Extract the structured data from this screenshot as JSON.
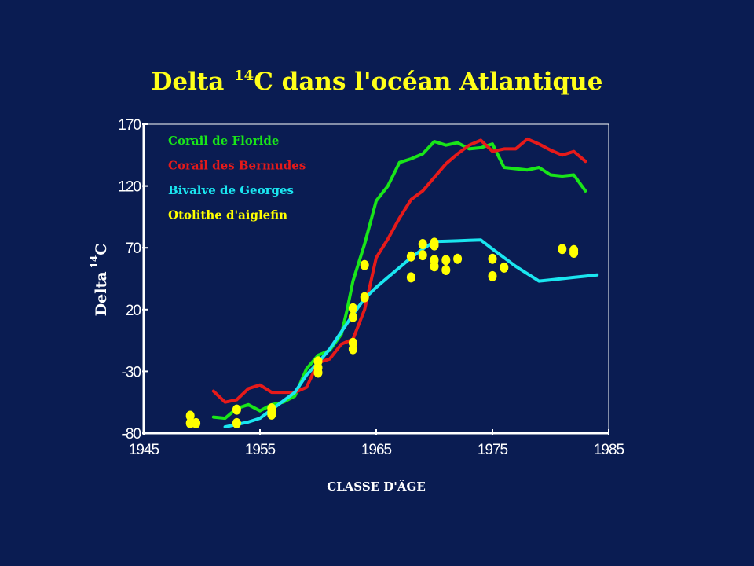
{
  "slide": {
    "title_part1": "Delta ",
    "title_sup": "14",
    "title_part2": "C dans l'océan Atlantique"
  },
  "colors": {
    "background": "#0a1c52",
    "title": "#ffff1a",
    "axis": "#ffffff"
  },
  "chart_data": {
    "type": "line",
    "title": "Delta 14C dans l'océan Atlantique",
    "xlabel": "CLASSE D'ÂGE",
    "ylabel_main": "Delta",
    "ylabel_sup": "14",
    "ylabel_tail": "C",
    "xlim": [
      1945,
      1985
    ],
    "ylim": [
      -80,
      170
    ],
    "xticks": [
      1945,
      1955,
      1965,
      1975,
      1985
    ],
    "yticks": [
      170,
      120,
      70,
      20,
      -30,
      -80
    ],
    "grid": false,
    "legend_position": "top-left",
    "series": [
      {
        "name": "Corail de Floride",
        "kind": "line",
        "color": "#19e619",
        "x": [
          1951,
          1952,
          1953,
          1954,
          1955,
          1956,
          1957,
          1958,
          1959,
          1960,
          1961,
          1962,
          1962.5,
          1963,
          1964,
          1965,
          1966,
          1967,
          1968,
          1969,
          1970,
          1971,
          1972,
          1973,
          1974,
          1975,
          1976,
          1977,
          1978,
          1979,
          1980,
          1981,
          1982,
          1983
        ],
        "y": [
          -67,
          -68,
          -60,
          -57,
          -62,
          -57,
          -55,
          -50,
          -28,
          -17,
          -13,
          0,
          20,
          43,
          73,
          108,
          120,
          139,
          142,
          146,
          156,
          153,
          155,
          150,
          151,
          154,
          135,
          134,
          133,
          135,
          129,
          128,
          129,
          116
        ]
      },
      {
        "name": "Corail des Bermudes",
        "kind": "line",
        "color": "#e61a1a",
        "x": [
          1951,
          1952,
          1953,
          1954,
          1955,
          1956,
          1957,
          1958,
          1959,
          1960,
          1961,
          1962,
          1963,
          1964,
          1965,
          1966,
          1967,
          1968,
          1969,
          1970,
          1971,
          1972,
          1973,
          1974,
          1975,
          1976,
          1977,
          1978,
          1979,
          1980,
          1981,
          1982,
          1983
        ],
        "y": [
          -46,
          -55,
          -53,
          -44,
          -41,
          -47,
          -47,
          -47,
          -43,
          -23,
          -20,
          -8,
          -4,
          20,
          62,
          77,
          94,
          109,
          116,
          127,
          138,
          146,
          153,
          157,
          148,
          150,
          150,
          158,
          154,
          149,
          145,
          148,
          140
        ]
      },
      {
        "name": "Bivalve de Georges",
        "kind": "line",
        "color": "#1ae6f0",
        "x": [
          1952,
          1953,
          1954,
          1955,
          1956,
          1957,
          1958,
          1959,
          1960,
          1961,
          1962,
          1963,
          1964,
          1965,
          1966,
          1967,
          1968,
          1969,
          1970,
          1971,
          1972,
          1973,
          1974,
          1975,
          1976,
          1977,
          1978,
          1979,
          1980,
          1981,
          1982,
          1983,
          1984
        ],
        "y": [
          -75,
          -73,
          -71,
          -68,
          -61,
          -54,
          -47,
          -33,
          -23,
          -12,
          2,
          16,
          29,
          38,
          46,
          54,
          62,
          69,
          75,
          75.3,
          75.6,
          76,
          76.3,
          69,
          62,
          55,
          49,
          43,
          44,
          45,
          46,
          47,
          48
        ]
      },
      {
        "name": "Otolithe d'aiglefin",
        "kind": "scatter",
        "color": "#ffff00",
        "x": [
          1949,
          1949,
          1949.5,
          1953,
          1953,
          1956,
          1956,
          1956,
          1960,
          1960,
          1960,
          1963,
          1963,
          1963,
          1963,
          1964,
          1964,
          1968,
          1968,
          1969,
          1969,
          1970,
          1970,
          1970,
          1970,
          1971,
          1971,
          1972,
          1975,
          1975,
          1976,
          1981,
          1982,
          1982
        ],
        "y": [
          -66,
          -72,
          -72,
          -61,
          -72,
          -60,
          -63,
          -65,
          -22,
          -27,
          -31,
          21,
          14,
          -7,
          -12,
          30,
          56,
          46,
          63,
          64,
          73,
          74,
          72,
          60,
          55,
          60,
          52,
          61,
          61,
          47,
          54,
          69,
          68,
          66
        ]
      }
    ]
  }
}
